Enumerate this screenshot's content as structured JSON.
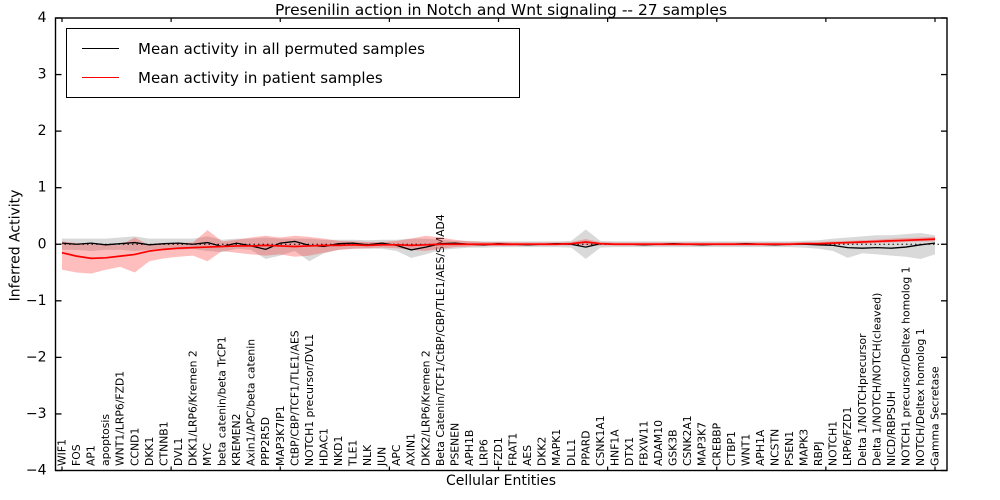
{
  "chart_data": {
    "type": "line",
    "title": "Presenilin action in Notch and Wnt signaling -- 27 samples",
    "xlabel": "Cellular Entities",
    "ylabel": "Inferred Activity",
    "ylim": [
      -4,
      4
    ],
    "yticks": [
      4,
      3,
      2,
      1,
      0,
      -1,
      -2,
      -3,
      -4
    ],
    "grid": false,
    "legend_position": "upper left",
    "zero_reference_line": "dotted black line at y=0",
    "categories": [
      "WIF1",
      "FOS",
      "AP1",
      "apoptosis",
      "WNT1/LRP6/FZD1",
      "CCND1",
      "DKK1",
      "CTNNB1",
      "DVL1",
      "DKK1/LRP6/Kremen 2",
      "MYC",
      "beta catenin/beta TrCP1",
      "KREMEN2",
      "Axin1/APC/beta catenin",
      "PPP2R5D",
      "MAP3K7IP1",
      "CtBP/CBP/TCF1/TLE1/AES",
      "NOTCH1 precursor/DVL1",
      "HDAC1",
      "NKD1",
      "TLE1",
      "NLK",
      "JUN",
      "APC",
      "AXIN1",
      "DKK2/LRP6/Kremen 2",
      "Beta Catenin/TCF1/CtBP/CBP/TLE1/AES/SMAD4",
      "PSENEN",
      "APH1B",
      "LRP6",
      "FZD1",
      "FRAT1",
      "AES",
      "DKK2",
      "MAPK1",
      "DLL1",
      "PPARD",
      "CSNK1A1",
      "HNF1A",
      "DTX1",
      "FBXW11",
      "ADAM10",
      "GSK3B",
      "CSNK2A1",
      "MAP3K7",
      "CREBBP",
      "CTBP1",
      "WNT1",
      "APH1A",
      "NCSTN",
      "PSEN1",
      "MAPK3",
      "RBPJ",
      "NOTCH1",
      "LRP6/FZD1",
      "Delta 1/NOTCHprecursor",
      "Delta 1/NOTCH/NOTCH(cleaved)",
      "NICD/RBPSUH",
      "NOTCH1 precursor/Deltex homolog 1",
      "NOTCH/Deltex homolog 1",
      "Gamma Secretase"
    ],
    "series": [
      {
        "name": "Mean activity in all permuted samples",
        "color": "#000000",
        "band_color": "rgba(130,130,130,0.30)",
        "values": [
          0.02,
          0.0,
          0.02,
          -0.01,
          0.01,
          0.03,
          -0.01,
          0.01,
          0.02,
          0.0,
          0.03,
          -0.04,
          0.02,
          -0.03,
          -0.09,
          0.02,
          0.05,
          -0.02,
          -0.04,
          0.01,
          0.02,
          -0.01,
          0.02,
          -0.02,
          -0.1,
          -0.05,
          0.01,
          0.02,
          0.0,
          -0.01,
          0.01,
          0.0,
          -0.01,
          0.0,
          0.01,
          0.0,
          -0.05,
          0.01,
          0.0,
          0.0,
          -0.01,
          0.0,
          0.01,
          0.0,
          -0.01,
          0.0,
          0.0,
          0.01,
          0.0,
          -0.01,
          0.0,
          0.0,
          -0.01,
          -0.02,
          -0.06,
          -0.07,
          -0.06,
          -0.07,
          -0.05,
          -0.01,
          0.02
        ],
        "band_upper": [
          0.1,
          0.1,
          0.1,
          0.1,
          0.12,
          0.14,
          0.1,
          0.1,
          0.1,
          0.1,
          0.14,
          0.08,
          0.1,
          0.1,
          0.12,
          0.1,
          0.1,
          0.1,
          0.08,
          0.08,
          0.08,
          0.07,
          0.08,
          0.08,
          0.1,
          0.1,
          0.08,
          0.06,
          0.06,
          0.05,
          0.05,
          0.05,
          0.05,
          0.05,
          0.05,
          0.06,
          0.26,
          0.06,
          0.05,
          0.05,
          0.05,
          0.05,
          0.05,
          0.05,
          0.05,
          0.05,
          0.05,
          0.05,
          0.05,
          0.05,
          0.05,
          0.06,
          0.07,
          0.1,
          0.12,
          0.14,
          0.16,
          0.16,
          0.18,
          0.2,
          0.16
        ],
        "band_lower": [
          -0.1,
          -0.1,
          -0.12,
          -0.1,
          -0.1,
          -0.12,
          -0.1,
          -0.08,
          -0.1,
          -0.08,
          -0.12,
          -0.14,
          -0.08,
          -0.1,
          -0.26,
          -0.2,
          -0.12,
          -0.3,
          -0.16,
          -0.1,
          -0.08,
          -0.08,
          -0.08,
          -0.12,
          -0.24,
          -0.18,
          -0.1,
          -0.08,
          -0.06,
          -0.06,
          -0.05,
          -0.05,
          -0.05,
          -0.05,
          -0.05,
          -0.06,
          -0.26,
          -0.06,
          -0.05,
          -0.05,
          -0.05,
          -0.05,
          -0.05,
          -0.05,
          -0.05,
          -0.05,
          -0.05,
          -0.05,
          -0.05,
          -0.05,
          -0.05,
          -0.06,
          -0.08,
          -0.12,
          -0.24,
          -0.16,
          -0.18,
          -0.2,
          -0.22,
          -0.26,
          -0.18
        ]
      },
      {
        "name": "Mean activity in patient samples",
        "color": "#ff0000",
        "band_color": "rgba(255,40,40,0.30)",
        "values": [
          -0.15,
          -0.21,
          -0.25,
          -0.24,
          -0.21,
          -0.18,
          -0.12,
          -0.09,
          -0.07,
          -0.06,
          -0.05,
          -0.04,
          -0.03,
          -0.03,
          -0.02,
          -0.03,
          -0.04,
          -0.03,
          -0.02,
          -0.02,
          -0.01,
          -0.02,
          -0.01,
          -0.01,
          -0.02,
          -0.01,
          0.0,
          0.0,
          0.0,
          0.0,
          0.0,
          0.0,
          0.0,
          0.0,
          0.0,
          0.01,
          0.04,
          0.01,
          0.0,
          0.0,
          0.0,
          0.0,
          0.0,
          0.0,
          0.0,
          0.0,
          0.0,
          0.0,
          0.0,
          0.0,
          0.0,
          0.01,
          0.01,
          0.02,
          0.03,
          0.04,
          0.05,
          0.06,
          0.07,
          0.08,
          0.09
        ],
        "band_upper": [
          0.05,
          0.02,
          0.0,
          0.0,
          -0.02,
          0.12,
          -0.02,
          0.0,
          0.02,
          0.03,
          0.25,
          0.05,
          0.08,
          0.12,
          0.15,
          0.12,
          0.15,
          0.13,
          0.1,
          0.06,
          0.05,
          0.04,
          0.04,
          0.06,
          0.1,
          0.15,
          0.12,
          0.08,
          0.05,
          0.04,
          0.04,
          0.03,
          0.03,
          0.03,
          0.03,
          0.04,
          0.09,
          0.04,
          0.03,
          0.03,
          0.03,
          0.03,
          0.03,
          0.03,
          0.03,
          0.03,
          0.03,
          0.03,
          0.03,
          0.03,
          0.03,
          0.04,
          0.04,
          0.05,
          0.06,
          0.07,
          0.08,
          0.1,
          0.11,
          0.12,
          0.13
        ],
        "band_lower": [
          -0.45,
          -0.5,
          -0.52,
          -0.45,
          -0.4,
          -0.5,
          -0.3,
          -0.25,
          -0.22,
          -0.2,
          -0.3,
          -0.12,
          -0.15,
          -0.18,
          -0.2,
          -0.18,
          -0.22,
          -0.2,
          -0.15,
          -0.1,
          -0.08,
          -0.07,
          -0.06,
          -0.07,
          -0.1,
          -0.12,
          -0.08,
          -0.05,
          -0.04,
          -0.03,
          -0.03,
          -0.03,
          -0.02,
          -0.02,
          -0.02,
          -0.02,
          -0.02,
          -0.02,
          -0.02,
          -0.02,
          -0.02,
          -0.02,
          -0.02,
          -0.02,
          -0.02,
          -0.02,
          -0.02,
          -0.02,
          -0.02,
          -0.02,
          -0.02,
          -0.01,
          -0.01,
          0.0,
          0.0,
          0.01,
          0.02,
          0.03,
          0.04,
          0.05,
          0.05
        ]
      }
    ]
  }
}
